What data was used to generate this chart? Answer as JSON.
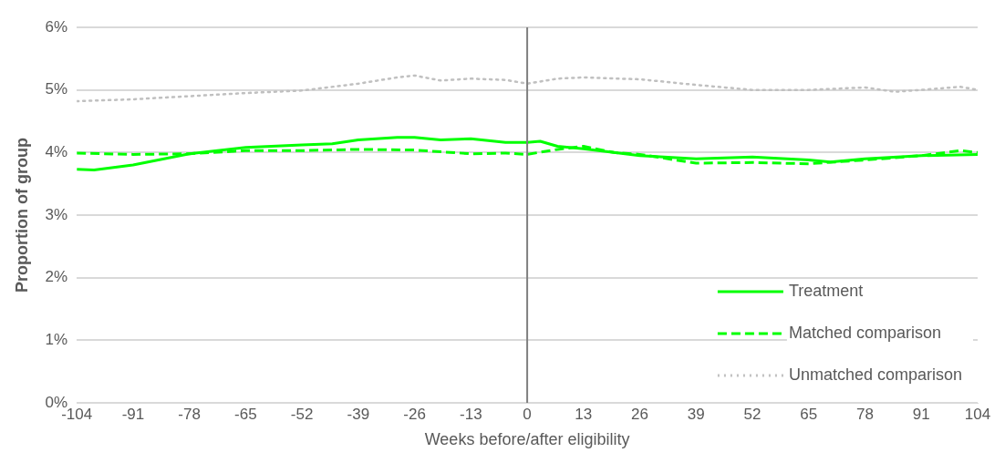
{
  "chart_data": {
    "type": "line",
    "xlabel": "Weeks before/after eligibility",
    "ylabel": "Proportion of group",
    "xlim": [
      -104,
      104
    ],
    "xticks": [
      -104,
      -91,
      -78,
      -65,
      -52,
      -39,
      -26,
      -13,
      0,
      13,
      26,
      39,
      52,
      65,
      78,
      91,
      104
    ],
    "ylim": [
      0,
      6
    ],
    "yticks": [
      {
        "value": 0,
        "label": "0%"
      },
      {
        "value": 1,
        "label": "1%"
      },
      {
        "value": 2,
        "label": "2%"
      },
      {
        "value": 3,
        "label": "3%"
      },
      {
        "value": 4,
        "label": "4%"
      },
      {
        "value": 5,
        "label": "5%"
      },
      {
        "value": 6,
        "label": "6%"
      }
    ],
    "grid": "y",
    "legend": "bottom right",
    "marker": "none",
    "ref_lines": [
      {
        "axis": "x",
        "value": 0,
        "color": "#808080"
      }
    ],
    "series": [
      {
        "name": "Treatment",
        "color": "#00ff00",
        "line_style": "solid",
        "x": [
          -104,
          -100,
          -91,
          -78,
          -65,
          -52,
          -45,
          -39,
          -30,
          -26,
          -20,
          -13,
          -5,
          0,
          3,
          7,
          13,
          20,
          26,
          39,
          52,
          65,
          70,
          78,
          91,
          104
        ],
        "values": [
          3.73,
          3.72,
          3.8,
          3.98,
          4.08,
          4.12,
          4.14,
          4.2,
          4.24,
          4.24,
          4.2,
          4.22,
          4.16,
          4.16,
          4.18,
          4.1,
          4.06,
          4.0,
          3.95,
          3.9,
          3.93,
          3.88,
          3.85,
          3.9,
          3.95,
          3.97
        ]
      },
      {
        "name": "Matched comparison",
        "color": "#00ff00",
        "line_style": "dashed",
        "x": [
          -104,
          -91,
          -78,
          -65,
          -52,
          -39,
          -26,
          -13,
          -5,
          0,
          7,
          13,
          20,
          26,
          39,
          52,
          65,
          78,
          91,
          100,
          104
        ],
        "values": [
          3.99,
          3.97,
          3.98,
          4.03,
          4.03,
          4.05,
          4.04,
          3.98,
          3.99,
          3.97,
          4.05,
          4.1,
          4.0,
          3.97,
          3.83,
          3.84,
          3.82,
          3.88,
          3.95,
          4.03,
          4.0
        ]
      },
      {
        "name": "Unmatched comparison",
        "color": "#c0c0c0",
        "line_style": "dotted",
        "x": [
          -104,
          -91,
          -78,
          -65,
          -52,
          -39,
          -30,
          -26,
          -20,
          -13,
          -5,
          0,
          7,
          13,
          26,
          39,
          52,
          65,
          78,
          85,
          91,
          100,
          104
        ],
        "values": [
          4.82,
          4.85,
          4.9,
          4.95,
          4.99,
          5.1,
          5.2,
          5.23,
          5.15,
          5.18,
          5.16,
          5.1,
          5.18,
          5.2,
          5.17,
          5.08,
          5.0,
          5.0,
          5.04,
          4.97,
          5.0,
          5.05,
          5.0
        ]
      }
    ]
  }
}
